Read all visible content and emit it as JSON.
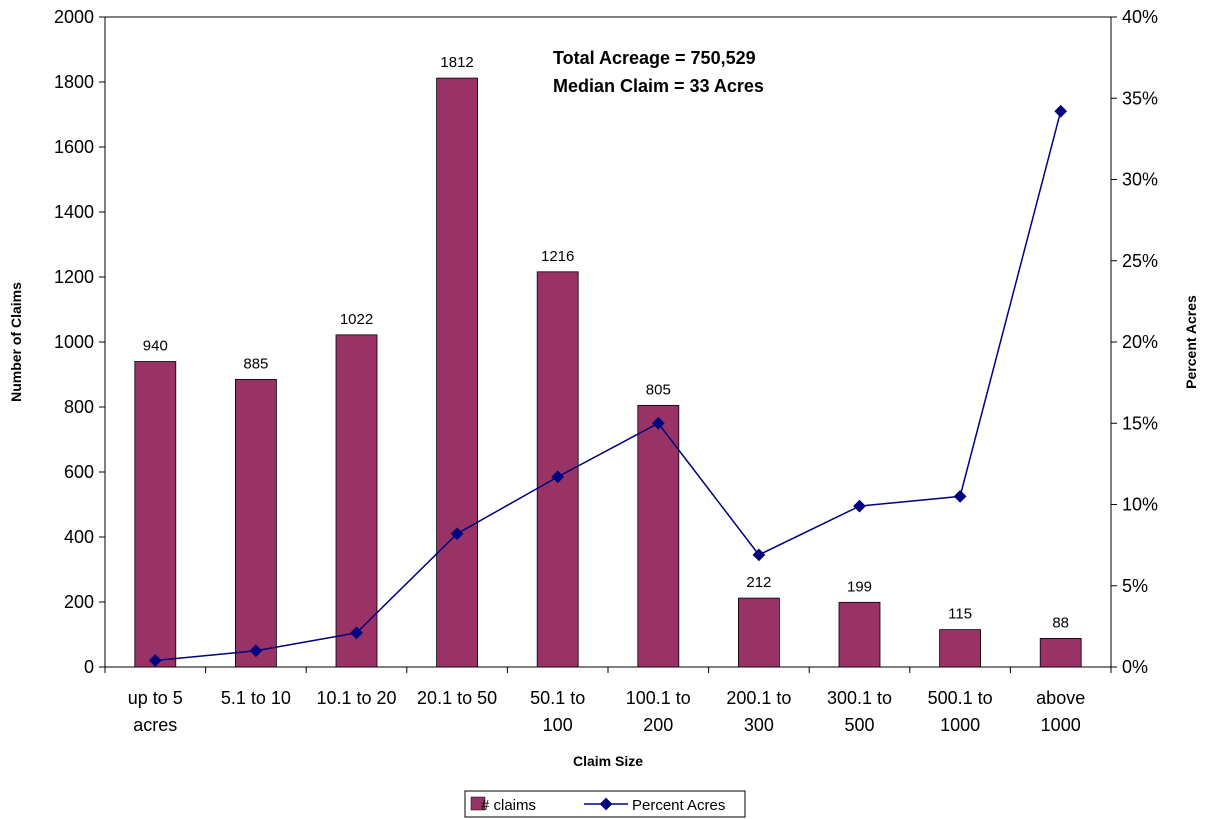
{
  "chart_data": {
    "type": "bar",
    "categories": [
      [
        "up to 5",
        "acres"
      ],
      [
        "5.1 to 10"
      ],
      [
        "10.1 to 20"
      ],
      [
        "20.1 to 50"
      ],
      [
        "50.1 to",
        "100"
      ],
      [
        "100.1 to",
        "200"
      ],
      [
        "200.1 to",
        "300"
      ],
      [
        "300.1 to",
        "500"
      ],
      [
        "500.1 to",
        "1000"
      ],
      [
        "above",
        "1000"
      ]
    ],
    "series": [
      {
        "name": "# claims",
        "type": "bar",
        "axis": "left",
        "color": "#993366",
        "values": [
          940,
          885,
          1022,
          1812,
          1216,
          805,
          212,
          199,
          115,
          88
        ]
      },
      {
        "name": "Percent Acres",
        "type": "line",
        "axis": "right",
        "color": "#000080",
        "values": [
          0.4,
          1.0,
          2.1,
          8.2,
          11.7,
          15.0,
          6.9,
          9.9,
          10.5,
          34.2
        ]
      }
    ],
    "xlabel": "Claim Size",
    "ylabel": "Number of Claims",
    "y2label": "Percent Acres",
    "ylim": [
      0,
      2000
    ],
    "yticks": [
      0,
      200,
      400,
      600,
      800,
      1000,
      1200,
      1400,
      1600,
      1800,
      2000
    ],
    "y2lim": [
      0,
      40
    ],
    "y2ticks": [
      "0%",
      "5%",
      "10%",
      "15%",
      "20%",
      "25%",
      "30%",
      "35%",
      "40%"
    ],
    "annotations": [
      "Total Acreage = 750,529",
      "Median Claim = 33 Acres"
    ],
    "legend": {
      "position": "bottom",
      "entries": [
        "# claims",
        "Percent Acres"
      ]
    },
    "grid": false
  }
}
